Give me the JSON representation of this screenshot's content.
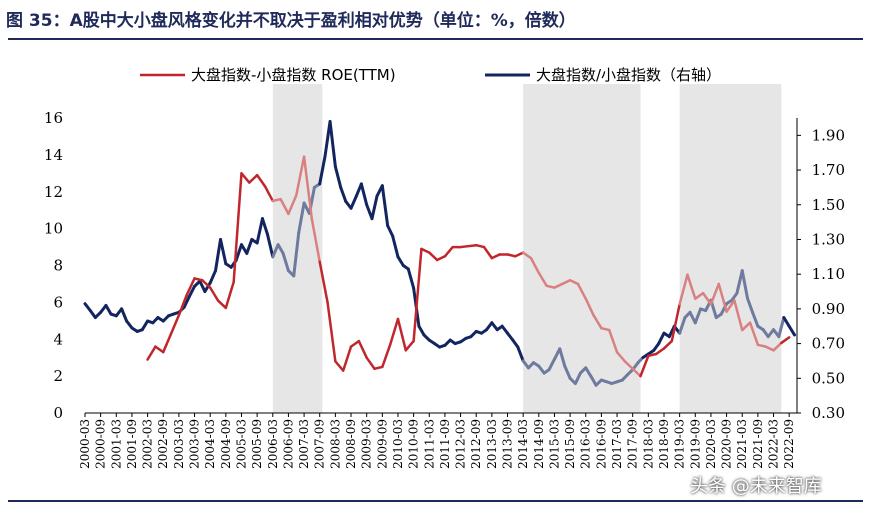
{
  "title": "图 35：A股中大小盘风格变化并不取决于盈利相对优势（单位：%，倍数）",
  "watermark": "头条 @未来智库",
  "colors": {
    "roe": "#c0272d",
    "ratio": "#13255f",
    "ratio_shaded": "#6e7a9e",
    "roe_shaded": "#d98080",
    "band": "#e6e6e6",
    "rule": "#1f2a5a"
  },
  "chart_data": {
    "type": "line",
    "legend": {
      "placement": "top",
      "entries": [
        "大盘指数-小盘指数 ROE(TTM)",
        "大盘指数/小盘指数（右轴）"
      ]
    },
    "x_ticks": [
      "2000-03",
      "2000-09",
      "2001-03",
      "2001-09",
      "2002-03",
      "2002-09",
      "2003-03",
      "2003-09",
      "2004-03",
      "2004-09",
      "2005-03",
      "2005-09",
      "2006-03",
      "2006-09",
      "2007-03",
      "2007-09",
      "2008-03",
      "2008-09",
      "2009-03",
      "2009-09",
      "2010-03",
      "2010-09",
      "2011-03",
      "2011-09",
      "2012-03",
      "2012-09",
      "2013-03",
      "2013-09",
      "2014-03",
      "2014-09",
      "2015-03",
      "2015-09",
      "2016-03",
      "2016-09",
      "2017-03",
      "2017-09",
      "2018-03",
      "2018-09",
      "2019-03",
      "2019-09",
      "2020-03",
      "2020-09",
      "2021-03",
      "2021-09",
      "2022-03",
      "2022-09"
    ],
    "y_left": {
      "range": [
        0,
        16
      ],
      "ticks": [
        0,
        2,
        4,
        6,
        8,
        10,
        12,
        14,
        16
      ]
    },
    "y_right": {
      "range": [
        0.3,
        2.0
      ],
      "ticks": [
        "0.30",
        "0.50",
        "0.70",
        "0.90",
        "1.10",
        "1.30",
        "1.50",
        "1.70",
        "1.90"
      ]
    },
    "shaded_periods": [
      [
        "2006-03",
        "2007-10"
      ],
      [
        "2014-03",
        "2017-12"
      ],
      [
        "2019-03",
        "2022-06"
      ]
    ],
    "series": [
      {
        "name": "大盘指数-小盘指数 ROE(TTM)",
        "axis": "left",
        "points": [
          [
            2002.0,
            2.9
          ],
          [
            2002.25,
            3.6
          ],
          [
            2002.5,
            3.3
          ],
          [
            2002.75,
            4.3
          ],
          [
            2003.0,
            5.3
          ],
          [
            2003.25,
            6.4
          ],
          [
            2003.5,
            7.3
          ],
          [
            2003.75,
            7.2
          ],
          [
            2004.0,
            6.8
          ],
          [
            2004.25,
            6.1
          ],
          [
            2004.5,
            5.7
          ],
          [
            2004.75,
            7.1
          ],
          [
            2005.0,
            13.0
          ],
          [
            2005.25,
            12.5
          ],
          [
            2005.5,
            12.9
          ],
          [
            2005.75,
            12.3
          ],
          [
            2006.0,
            11.5
          ],
          [
            2006.25,
            11.6
          ],
          [
            2006.5,
            10.8
          ],
          [
            2006.75,
            11.8
          ],
          [
            2007.0,
            13.9
          ],
          [
            2007.25,
            10.5
          ],
          [
            2007.5,
            8.2
          ],
          [
            2007.75,
            6.0
          ],
          [
            2008.0,
            2.8
          ],
          [
            2008.25,
            2.3
          ],
          [
            2008.5,
            3.6
          ],
          [
            2008.75,
            3.9
          ],
          [
            2009.0,
            3.0
          ],
          [
            2009.25,
            2.4
          ],
          [
            2009.5,
            2.5
          ],
          [
            2009.75,
            3.7
          ],
          [
            2010.0,
            5.1
          ],
          [
            2010.25,
            3.4
          ],
          [
            2010.5,
            3.9
          ],
          [
            2010.75,
            8.9
          ],
          [
            2011.0,
            8.7
          ],
          [
            2011.25,
            8.3
          ],
          [
            2011.5,
            8.5
          ],
          [
            2011.75,
            9.0
          ],
          [
            2012.0,
            9.0
          ],
          [
            2012.5,
            9.1
          ],
          [
            2012.75,
            9.0
          ],
          [
            2013.0,
            8.4
          ],
          [
            2013.25,
            8.6
          ],
          [
            2013.5,
            8.6
          ],
          [
            2013.75,
            8.5
          ],
          [
            2014.0,
            8.7
          ],
          [
            2014.25,
            8.4
          ],
          [
            2014.5,
            7.6
          ],
          [
            2014.75,
            6.9
          ],
          [
            2015.0,
            6.8
          ],
          [
            2015.25,
            7.0
          ],
          [
            2015.5,
            7.2
          ],
          [
            2015.75,
            7.0
          ],
          [
            2016.0,
            6.2
          ],
          [
            2016.25,
            5.3
          ],
          [
            2016.5,
            4.6
          ],
          [
            2016.75,
            4.5
          ],
          [
            2017.0,
            3.3
          ],
          [
            2017.25,
            2.8
          ],
          [
            2017.5,
            2.4
          ],
          [
            2017.75,
            2.0
          ],
          [
            2018.0,
            3.1
          ],
          [
            2018.25,
            3.2
          ],
          [
            2018.5,
            3.5
          ],
          [
            2018.75,
            3.9
          ],
          [
            2019.0,
            5.9
          ],
          [
            2019.25,
            7.5
          ],
          [
            2019.5,
            6.2
          ],
          [
            2019.75,
            6.5
          ],
          [
            2020.0,
            5.9
          ],
          [
            2020.25,
            7.0
          ],
          [
            2020.5,
            5.5
          ],
          [
            2020.75,
            6.1
          ],
          [
            2021.0,
            4.5
          ],
          [
            2021.25,
            4.9
          ],
          [
            2021.5,
            3.7
          ],
          [
            2021.75,
            3.6
          ],
          [
            2022.0,
            3.4
          ],
          [
            2022.25,
            3.8
          ],
          [
            2022.5,
            4.1
          ]
        ]
      },
      {
        "name": "大盘指数/小盘指数（右轴）",
        "axis": "right",
        "points": [
          [
            2000.0,
            0.93
          ],
          [
            2000.17,
            0.89
          ],
          [
            2000.33,
            0.85
          ],
          [
            2000.5,
            0.88
          ],
          [
            2000.67,
            0.92
          ],
          [
            2000.83,
            0.87
          ],
          [
            2001.0,
            0.86
          ],
          [
            2001.17,
            0.9
          ],
          [
            2001.33,
            0.83
          ],
          [
            2001.5,
            0.79
          ],
          [
            2001.67,
            0.77
          ],
          [
            2001.83,
            0.78
          ],
          [
            2002.0,
            0.83
          ],
          [
            2002.17,
            0.82
          ],
          [
            2002.33,
            0.85
          ],
          [
            2002.5,
            0.83
          ],
          [
            2002.67,
            0.86
          ],
          [
            2002.83,
            0.87
          ],
          [
            2003.0,
            0.88
          ],
          [
            2003.17,
            0.91
          ],
          [
            2003.33,
            0.97
          ],
          [
            2003.5,
            1.03
          ],
          [
            2003.67,
            1.06
          ],
          [
            2003.83,
            1.0
          ],
          [
            2004.0,
            1.05
          ],
          [
            2004.17,
            1.12
          ],
          [
            2004.33,
            1.3
          ],
          [
            2004.5,
            1.16
          ],
          [
            2004.67,
            1.14
          ],
          [
            2004.83,
            1.18
          ],
          [
            2005.0,
            1.27
          ],
          [
            2005.17,
            1.22
          ],
          [
            2005.33,
            1.3
          ],
          [
            2005.5,
            1.28
          ],
          [
            2005.67,
            1.42
          ],
          [
            2005.83,
            1.33
          ],
          [
            2006.0,
            1.2
          ],
          [
            2006.17,
            1.27
          ],
          [
            2006.33,
            1.22
          ],
          [
            2006.5,
            1.12
          ],
          [
            2006.67,
            1.09
          ],
          [
            2006.83,
            1.34
          ],
          [
            2007.0,
            1.51
          ],
          [
            2007.17,
            1.45
          ],
          [
            2007.33,
            1.6
          ],
          [
            2007.5,
            1.62
          ],
          [
            2007.67,
            1.78
          ],
          [
            2007.83,
            1.98
          ],
          [
            2008.0,
            1.72
          ],
          [
            2008.17,
            1.6
          ],
          [
            2008.33,
            1.52
          ],
          [
            2008.5,
            1.48
          ],
          [
            2008.67,
            1.55
          ],
          [
            2008.83,
            1.62
          ],
          [
            2009.0,
            1.5
          ],
          [
            2009.17,
            1.42
          ],
          [
            2009.33,
            1.55
          ],
          [
            2009.5,
            1.61
          ],
          [
            2009.67,
            1.38
          ],
          [
            2009.83,
            1.32
          ],
          [
            2010.0,
            1.2
          ],
          [
            2010.17,
            1.15
          ],
          [
            2010.33,
            1.13
          ],
          [
            2010.5,
            1.02
          ],
          [
            2010.67,
            0.8
          ],
          [
            2010.83,
            0.75
          ],
          [
            2011.0,
            0.72
          ],
          [
            2011.17,
            0.7
          ],
          [
            2011.33,
            0.68
          ],
          [
            2011.5,
            0.69
          ],
          [
            2011.67,
            0.72
          ],
          [
            2011.83,
            0.7
          ],
          [
            2012.0,
            0.71
          ],
          [
            2012.17,
            0.73
          ],
          [
            2012.33,
            0.74
          ],
          [
            2012.5,
            0.77
          ],
          [
            2012.67,
            0.76
          ],
          [
            2012.83,
            0.78
          ],
          [
            2013.0,
            0.82
          ],
          [
            2013.17,
            0.78
          ],
          [
            2013.33,
            0.8
          ],
          [
            2013.5,
            0.76
          ],
          [
            2013.67,
            0.72
          ],
          [
            2013.83,
            0.68
          ],
          [
            2014.0,
            0.6
          ],
          [
            2014.17,
            0.56
          ],
          [
            2014.33,
            0.59
          ],
          [
            2014.5,
            0.57
          ],
          [
            2014.67,
            0.53
          ],
          [
            2014.83,
            0.55
          ],
          [
            2015.0,
            0.61
          ],
          [
            2015.17,
            0.67
          ],
          [
            2015.33,
            0.57
          ],
          [
            2015.5,
            0.5
          ],
          [
            2015.67,
            0.47
          ],
          [
            2015.83,
            0.53
          ],
          [
            2016.0,
            0.56
          ],
          [
            2016.17,
            0.51
          ],
          [
            2016.33,
            0.46
          ],
          [
            2016.5,
            0.49
          ],
          [
            2016.67,
            0.48
          ],
          [
            2016.83,
            0.47
          ],
          [
            2017.0,
            0.48
          ],
          [
            2017.17,
            0.49
          ],
          [
            2017.33,
            0.52
          ],
          [
            2017.5,
            0.55
          ],
          [
            2017.67,
            0.59
          ],
          [
            2017.83,
            0.62
          ],
          [
            2018.0,
            0.64
          ],
          [
            2018.17,
            0.66
          ],
          [
            2018.33,
            0.7
          ],
          [
            2018.5,
            0.76
          ],
          [
            2018.67,
            0.74
          ],
          [
            2018.83,
            0.8
          ],
          [
            2019.0,
            0.76
          ],
          [
            2019.17,
            0.85
          ],
          [
            2019.33,
            0.88
          ],
          [
            2019.5,
            0.82
          ],
          [
            2019.67,
            0.9
          ],
          [
            2019.83,
            0.89
          ],
          [
            2020.0,
            0.95
          ],
          [
            2020.17,
            0.85
          ],
          [
            2020.33,
            0.87
          ],
          [
            2020.5,
            0.93
          ],
          [
            2020.67,
            0.95
          ],
          [
            2020.83,
            0.99
          ],
          [
            2021.0,
            1.12
          ],
          [
            2021.17,
            0.96
          ],
          [
            2021.33,
            0.88
          ],
          [
            2021.5,
            0.8
          ],
          [
            2021.67,
            0.78
          ],
          [
            2021.83,
            0.74
          ],
          [
            2022.0,
            0.78
          ],
          [
            2022.17,
            0.74
          ],
          [
            2022.33,
            0.85
          ],
          [
            2022.5,
            0.8
          ],
          [
            2022.67,
            0.75
          ]
        ]
      }
    ]
  }
}
